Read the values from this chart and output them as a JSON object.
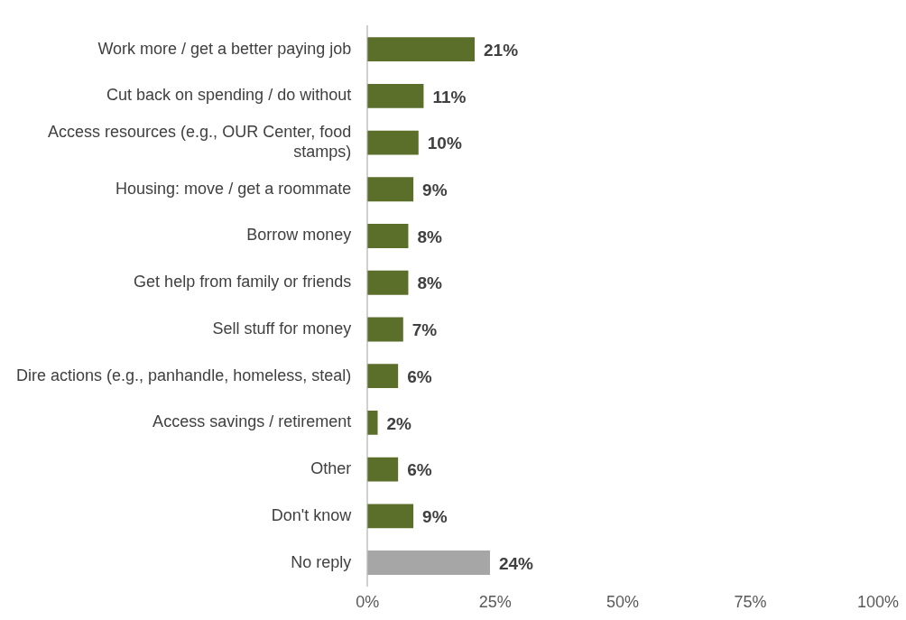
{
  "chart_data": {
    "type": "bar",
    "orientation": "horizontal",
    "categories": [
      "Work more / get a better paying job",
      "Cut back on spending / do without",
      "Access resources (e.g., OUR Center, food stamps)",
      "Housing: move / get a roommate",
      "Borrow money",
      "Get help from family or friends",
      "Sell stuff for money",
      "Dire actions (e.g., panhandle, homeless, steal)",
      "Access savings / retirement",
      "Other",
      "Don't know",
      "No reply"
    ],
    "values": [
      21,
      11,
      10,
      9,
      8,
      8,
      7,
      6,
      2,
      6,
      9,
      24
    ],
    "colors": [
      "#5b6e2a",
      "#5b6e2a",
      "#5b6e2a",
      "#5b6e2a",
      "#5b6e2a",
      "#5b6e2a",
      "#5b6e2a",
      "#5b6e2a",
      "#5b6e2a",
      "#5b6e2a",
      "#5b6e2a",
      "#a6a6a6"
    ],
    "value_labels": [
      "21%",
      "11%",
      "10%",
      "9%",
      "8%",
      "8%",
      "7%",
      "6%",
      "2%",
      "6%",
      "9%",
      "24%"
    ],
    "xlim": [
      0,
      100
    ],
    "xticks": [
      {
        "value": 0,
        "label": "0%"
      },
      {
        "value": 25,
        "label": "25%"
      },
      {
        "value": 50,
        "label": "50%"
      },
      {
        "value": 75,
        "label": "75%"
      },
      {
        "value": 100,
        "label": "100%"
      }
    ],
    "grid": false,
    "legend": false
  }
}
